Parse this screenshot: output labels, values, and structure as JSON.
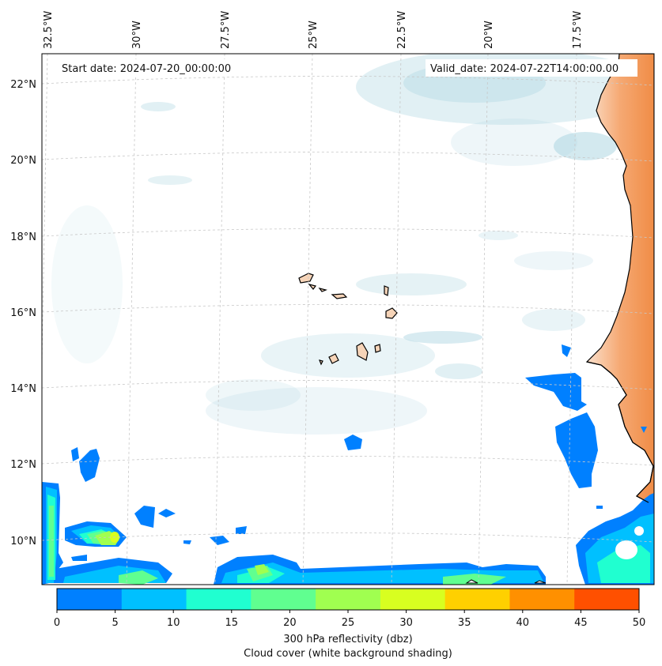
{
  "map": {
    "start_label": "Start date: 2024-07-20_00:00:00",
    "valid_label": "Valid_date: 2024-07-22T14:00:00.00",
    "lon_labels": [
      "32.5°W",
      "30°W",
      "27.5°W",
      "25°W",
      "22.5°W",
      "20°W",
      "17.5°W"
    ],
    "lat_labels": [
      "22°N",
      "20°N",
      "18°N",
      "16°N",
      "14°N",
      "12°N",
      "10°N"
    ],
    "land_color": "#f08c46",
    "cloud_color": "#a8d3df"
  },
  "colorbar": {
    "ticks": [
      "0",
      "5",
      "10",
      "15",
      "20",
      "25",
      "30",
      "35",
      "40",
      "45",
      "50"
    ],
    "colors": [
      "#0080ff",
      "#00c0ff",
      "#20ffd0",
      "#60ff90",
      "#a0ff50",
      "#d8ff20",
      "#ffd000",
      "#ff9000",
      "#ff5000"
    ],
    "label": "300 hPa reflectivity (dbz)",
    "sublabel": "Cloud cover (white background shading)"
  }
}
